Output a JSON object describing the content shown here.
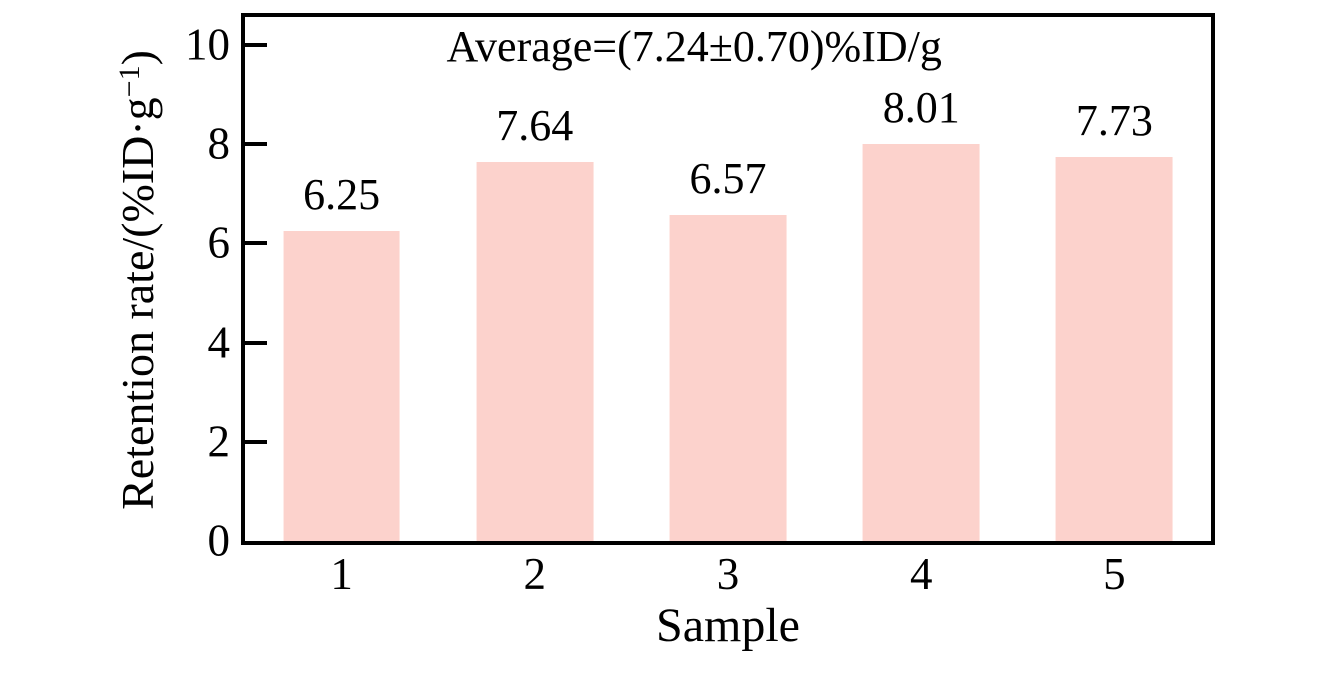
{
  "chart_data": {
    "type": "bar",
    "annotation": "Average=(7.24±0.70)%ID/g",
    "xlabel": "Sample",
    "ylabel": "Retention rate/(%ID·g⁻¹)",
    "ylabel_parts": {
      "main": "Retention rate/(%ID·g",
      "sup": "−1",
      "close": ")"
    },
    "categories": [
      "1",
      "2",
      "3",
      "4",
      "5"
    ],
    "values": [
      6.25,
      7.64,
      6.57,
      8.01,
      7.73
    ],
    "bar_value_labels": [
      "6.25",
      "7.64",
      "6.57",
      "8.01",
      "7.73"
    ],
    "yticks": [
      0,
      2,
      4,
      6,
      8,
      10
    ],
    "ylim": [
      0,
      10.56
    ],
    "grid": false,
    "legend_position": "none",
    "bar_color": "#fcd2cc",
    "axis_color": "#000000",
    "text_color": "#000000",
    "background_color": "#ffffff"
  }
}
